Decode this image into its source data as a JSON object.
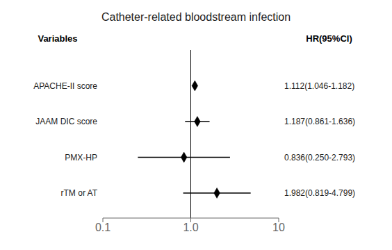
{
  "chart_data": {
    "type": "forest",
    "title": "Catheter-related bloodstream infection",
    "headers": [
      "Variables",
      "HR(95%CI)"
    ],
    "categories": [
      "APACHE-II score",
      "JAAM DIC score",
      "PMX-HP",
      "rTM or AT"
    ],
    "values": [
      1.112,
      1.187,
      0.836,
      1.982
    ],
    "ci_low": [
      1.046,
      0.861,
      0.25,
      0.819
    ],
    "ci_high": [
      1.182,
      1.636,
      2.793,
      4.799
    ],
    "value_labels": [
      "1.112(1.046-1.182)",
      "1.187(0.861-1.636)",
      "0.836(0.250-2.793)",
      "1.982(0.819-4.799)"
    ],
    "data_labels": true,
    "ref_line": 1.0,
    "log": "x",
    "xlim": [
      0.1,
      10
    ],
    "xticks": [
      0.1,
      {
        "value": 1.0,
        "label": "1.0"
      },
      10
    ],
    "color": "black",
    "marker": "diamond",
    "grid": false
  }
}
